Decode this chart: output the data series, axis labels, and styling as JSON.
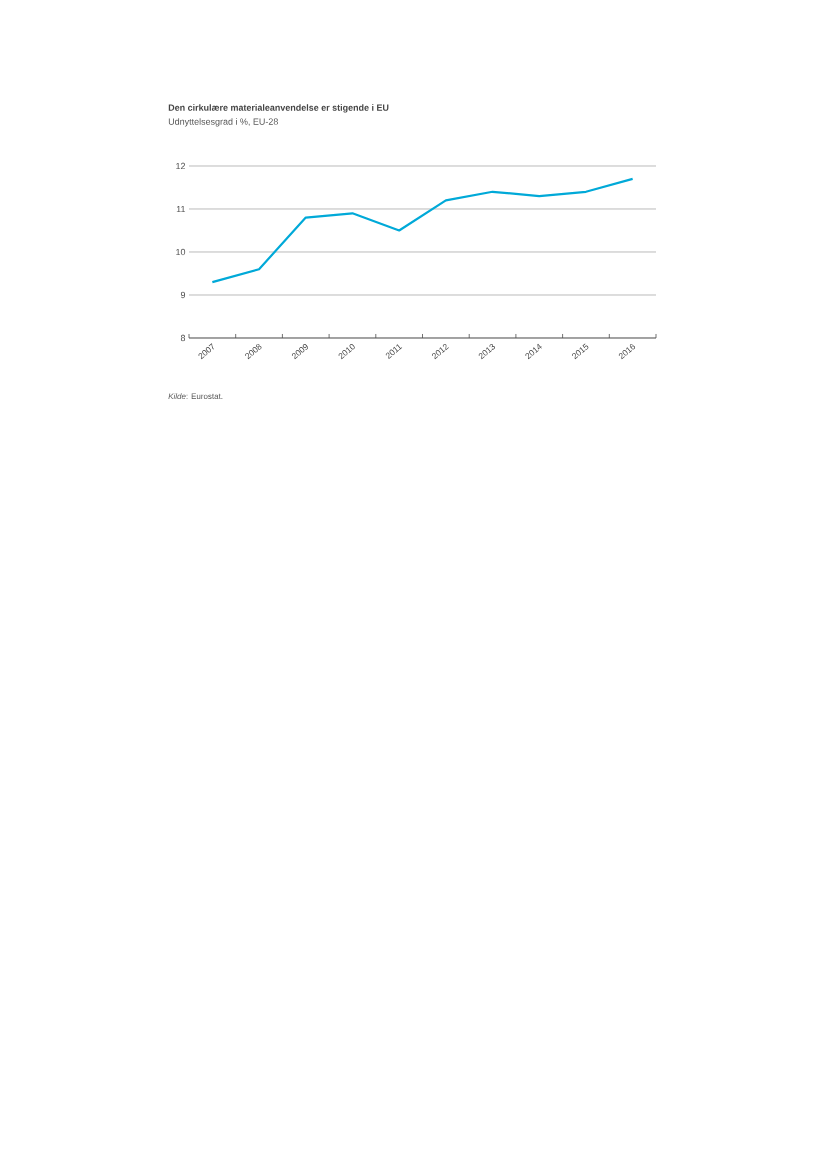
{
  "chart_data": {
    "type": "line",
    "title": "Den cirkulære materialeanvendelse  er stigende  i EU",
    "subtitle": "Udnyttelsesgrad i %, EU-28",
    "categories": [
      "2007",
      "2008",
      "2009",
      "2010",
      "2011",
      "2012",
      "2013",
      "2014",
      "2015",
      "2016"
    ],
    "series": [
      {
        "color": "#00a9d8",
        "values": [
          9.3,
          9.6,
          10.8,
          10.9,
          10.5,
          11.2,
          11.4,
          11.3,
          11.4,
          11.7
        ]
      }
    ],
    "ylim": [
      8,
      12
    ],
    "yticks": [
      8,
      9,
      10,
      11,
      12
    ],
    "grid": "y",
    "annotations": [
      "*Kilde*: Eurostat."
    ]
  }
}
